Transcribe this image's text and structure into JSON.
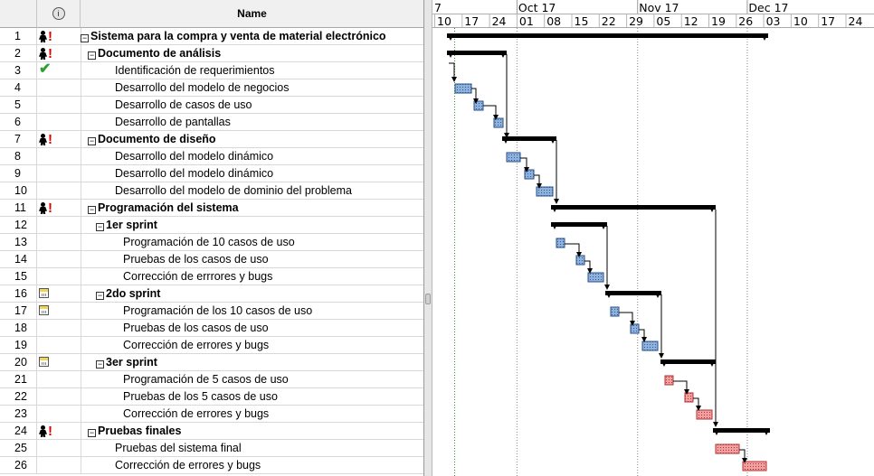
{
  "grid": {
    "headers": {
      "num": "",
      "indicators_icon": "info-icon",
      "name": "Name"
    },
    "rows": [
      {
        "num": "1",
        "name": "Sistema para la compra y venta de material electrónico",
        "level": 0,
        "summary": true,
        "icons": [
          "person",
          "alert"
        ]
      },
      {
        "num": "2",
        "name": "Documento de análisis",
        "level": 1,
        "summary": true,
        "icons": [
          "person",
          "alert"
        ]
      },
      {
        "num": "3",
        "name": "Identificación de requerimientos",
        "level": 2,
        "summary": false,
        "icons": [
          "check"
        ]
      },
      {
        "num": "4",
        "name": "Desarrollo del modelo de negocios",
        "level": 2,
        "summary": false,
        "icons": []
      },
      {
        "num": "5",
        "name": "Desarrollo de casos de uso",
        "level": 2,
        "summary": false,
        "icons": []
      },
      {
        "num": "6",
        "name": "Desarrollo de pantallas",
        "level": 2,
        "summary": false,
        "icons": []
      },
      {
        "num": "7",
        "name": "Documento de diseño",
        "level": 1,
        "summary": true,
        "icons": [
          "person",
          "alert"
        ]
      },
      {
        "num": "8",
        "name": "Desarrollo del modelo dinámico",
        "level": 2,
        "summary": false,
        "icons": []
      },
      {
        "num": "9",
        "name": "Desarrollo del modelo dinámico",
        "level": 2,
        "summary": false,
        "icons": []
      },
      {
        "num": "10",
        "name": "Desarrollo del modelo de dominio del problema",
        "level": 2,
        "summary": false,
        "icons": []
      },
      {
        "num": "11",
        "name": "Programación del sistema",
        "level": 1,
        "summary": true,
        "icons": [
          "person",
          "alert"
        ]
      },
      {
        "num": "12",
        "name": "1er sprint",
        "level": 2,
        "summary": true,
        "icons": []
      },
      {
        "num": "13",
        "name": "Programación de 10 casos de uso",
        "level": 3,
        "summary": false,
        "icons": []
      },
      {
        "num": "14",
        "name": "Pruebas de los casos de uso",
        "level": 3,
        "summary": false,
        "icons": []
      },
      {
        "num": "15",
        "name": "Corrección de errrores y bugs",
        "level": 3,
        "summary": false,
        "icons": []
      },
      {
        "num": "16",
        "name": "2do sprint",
        "level": 2,
        "summary": true,
        "icons": [
          "calendar"
        ]
      },
      {
        "num": "17",
        "name": "Programación de los 10 casos de uso",
        "level": 3,
        "summary": false,
        "icons": [
          "calendar"
        ]
      },
      {
        "num": "18",
        "name": "Pruebas de los casos de uso",
        "level": 3,
        "summary": false,
        "icons": []
      },
      {
        "num": "19",
        "name": "Corrección de errores y bugs",
        "level": 3,
        "summary": false,
        "icons": []
      },
      {
        "num": "20",
        "name": "3er sprint",
        "level": 2,
        "summary": true,
        "icons": [
          "calendar"
        ]
      },
      {
        "num": "21",
        "name": "Programación de 5 casos de uso",
        "level": 3,
        "summary": false,
        "icons": []
      },
      {
        "num": "22",
        "name": "Pruebas de los 5 casos de uso",
        "level": 3,
        "summary": false,
        "icons": []
      },
      {
        "num": "23",
        "name": "Corrección de errores y bugs",
        "level": 3,
        "summary": false,
        "icons": []
      },
      {
        "num": "24",
        "name": "Pruebas finales",
        "level": 1,
        "summary": true,
        "icons": [
          "person",
          "alert"
        ]
      },
      {
        "num": "25",
        "name": "Pruebas del sistema final",
        "level": 2,
        "summary": false,
        "icons": []
      },
      {
        "num": "26",
        "name": "Corrección de errores y bugs",
        "level": 2,
        "summary": false,
        "icons": []
      }
    ]
  },
  "gantt": {
    "months": [
      "7",
      "Oct 17",
      "Nov 17",
      "Dec 17"
    ],
    "days": [
      "10",
      "17",
      "24",
      "01",
      "08",
      "15",
      "22",
      "29",
      "05",
      "12",
      "19",
      "26",
      "03",
      "10",
      "17",
      "24"
    ],
    "colors": {
      "summary": "#000000",
      "task_blue": "#7ea6d8",
      "task_red": "#e88a8a",
      "today_line": "#2a9a2a",
      "month_line": "#888888"
    }
  }
}
